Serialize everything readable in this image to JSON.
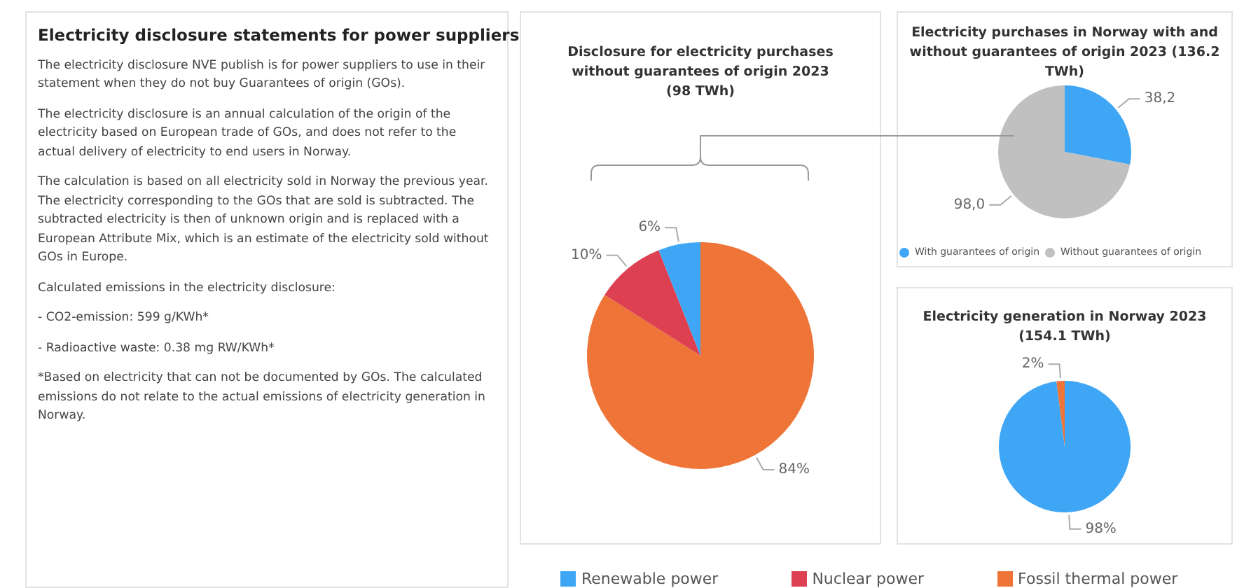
{
  "chart_data": [
    {
      "type": "other",
      "title": "Electricity disclosure statements for power suppliers",
      "annotations": [
        "The electricity disclosure NVE publish is for power suppliers to use in their statement when they do not buy Guarantees of origin (GOs).",
        "The electricity disclosure is an annual calculation of the origin of the electricity based on European trade of GOs, and does not refer to the actual delivery of electricity to end users in Norway.",
        "The calculation is based on all electricity sold in Norway the previous year. The electricity corresponding to the GOs that are sold is subtracted. The subtracted electricity is then of unknown origin and is replaced with a European Attribute Mix, which is an estimate of the electricity sold without GOs in Europe.",
        "Calculated emissions in the electricity disclosure:",
        "- CO2-emission: 599 g/KWh*",
        "- Radioactive waste: 0.38 mg RW/KWh*",
        "*Based on electricity that can not be documented by GOs. The calculated emissions do not relate to the actual emissions of electricity generation in Norway."
      ]
    },
    {
      "type": "pie",
      "title": "Disclosure for electricity purchases without guarantees of origin 2023 (98 TWh)",
      "categories": [
        "Fossil thermal power",
        "Nuclear power",
        "Renewable power"
      ],
      "values": [
        84,
        10,
        6
      ],
      "colors": [
        "#ee7437",
        "#dc4051",
        "#3ea6f5"
      ],
      "value_labels": [
        "84%",
        "10%",
        "6%"
      ],
      "legend": "bottom"
    },
    {
      "type": "pie",
      "title": "Electricity purchases in Norway with and without guarantees of origin 2023 (136.2 TWh)",
      "categories": [
        "With guarantees of origin",
        "Without guarantees of origin"
      ],
      "values": [
        38.2,
        98.0
      ],
      "colors": [
        "#3ea6f5",
        "#c0c0c0"
      ],
      "value_labels": [
        "38,2",
        "98,0"
      ],
      "legend": "bottom"
    },
    {
      "type": "pie",
      "title": "Electricity generation in Norway 2023 (154.1 TWh)",
      "categories": [
        null,
        null
      ],
      "values": [
        98,
        2
      ],
      "colors": [
        "#3ea6f5",
        "#ee7437"
      ],
      "value_labels": [
        "98%",
        "2%"
      ]
    }
  ]
}
